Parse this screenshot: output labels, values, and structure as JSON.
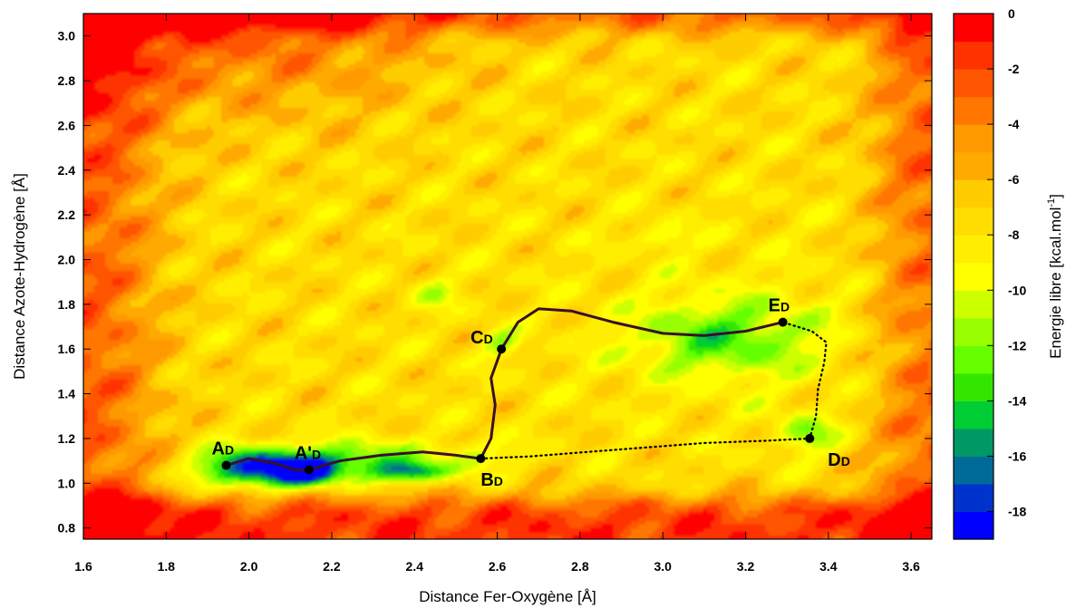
{
  "chart_data": {
    "type": "heatmap",
    "xlabel": "Distance Fer-Oxygène [Å]",
    "ylabel": "Distance Azote-Hydrogène [Å]",
    "xlim": [
      1.6,
      3.65
    ],
    "ylim": [
      0.75,
      3.1
    ],
    "xticks": [
      "1.6",
      "1.8",
      "2.0",
      "2.2",
      "2.4",
      "2.6",
      "2.8",
      "3.0",
      "3.2",
      "3.4",
      "3.6"
    ],
    "yticks": [
      "0.8",
      "1.0",
      "1.2",
      "1.4",
      "1.6",
      "1.8",
      "2.0",
      "2.2",
      "2.4",
      "2.6",
      "2.8",
      "3.0"
    ],
    "colorbar": {
      "label_main": "Energie libre [kcal.mol",
      "label_sup": "-1",
      "label_end": "]",
      "range": [
        -19,
        0
      ],
      "ticks": [
        "0",
        "-2",
        "-4",
        "-6",
        "-8",
        "-10",
        "-12",
        "-14",
        "-16",
        "-18"
      ],
      "colors": [
        "#0000ff",
        "#0033cc",
        "#006b99",
        "#009966",
        "#00cc33",
        "#33e600",
        "#66ff00",
        "#99ff00",
        "#ccff00",
        "#ffff00",
        "#ffee00",
        "#ffdd00",
        "#ffcc00",
        "#ffaa00",
        "#ff9900",
        "#ff7700",
        "#ff5500",
        "#ff3300",
        "#ff0000"
      ]
    },
    "points": [
      {
        "main": "A",
        "sub": "D",
        "x": 1.945,
        "y": 1.08
      },
      {
        "main": "A'",
        "sub": "D",
        "x": 2.145,
        "y": 1.06
      },
      {
        "main": "B",
        "sub": "D",
        "x": 2.56,
        "y": 1.11
      },
      {
        "main": "C",
        "sub": "D",
        "x": 2.61,
        "y": 1.6
      },
      {
        "main": "D",
        "sub": "D",
        "x": 3.355,
        "y": 1.2
      },
      {
        "main": "E",
        "sub": "D",
        "x": 3.29,
        "y": 1.72
      }
    ],
    "paths": {
      "solid": [
        [
          1.945,
          1.08
        ],
        [
          2.0,
          1.11
        ],
        [
          2.06,
          1.09
        ],
        [
          2.11,
          1.06
        ],
        [
          2.145,
          1.06
        ],
        [
          2.22,
          1.1
        ],
        [
          2.32,
          1.125
        ],
        [
          2.42,
          1.14
        ],
        [
          2.5,
          1.125
        ],
        [
          2.56,
          1.11
        ],
        [
          2.585,
          1.2
        ],
        [
          2.595,
          1.35
        ],
        [
          2.585,
          1.47
        ],
        [
          2.61,
          1.6
        ],
        [
          2.65,
          1.72
        ],
        [
          2.7,
          1.78
        ],
        [
          2.78,
          1.77
        ],
        [
          2.88,
          1.72
        ],
        [
          3.0,
          1.67
        ],
        [
          3.1,
          1.66
        ],
        [
          3.2,
          1.68
        ],
        [
          3.29,
          1.72
        ]
      ],
      "dotted": [
        [
          2.56,
          1.11
        ],
        [
          2.68,
          1.12
        ],
        [
          2.82,
          1.14
        ],
        [
          2.96,
          1.16
        ],
        [
          3.1,
          1.18
        ],
        [
          3.25,
          1.19
        ],
        [
          3.355,
          1.2
        ],
        [
          3.37,
          1.3
        ],
        [
          3.375,
          1.42
        ],
        [
          3.39,
          1.54
        ],
        [
          3.395,
          1.63
        ],
        [
          3.36,
          1.68
        ],
        [
          3.29,
          1.72
        ]
      ]
    },
    "minima": [
      {
        "x": 2.02,
        "y": 1.07,
        "depth": -18.5,
        "sx": 0.1,
        "sy": 0.06
      },
      {
        "x": 2.14,
        "y": 1.05,
        "depth": -16,
        "sx": 0.05,
        "sy": 0.04
      },
      {
        "x": 2.4,
        "y": 1.05,
        "depth": -14.5,
        "sx": 0.06,
        "sy": 0.03
      },
      {
        "x": 2.27,
        "y": 1.1,
        "depth": -13.5,
        "sx": 0.1,
        "sy": 0.06
      },
      {
        "x": 2.55,
        "y": 1.12,
        "depth": -10.5,
        "sx": 0.06,
        "sy": 0.05
      },
      {
        "x": 3.15,
        "y": 1.65,
        "depth": -12.5,
        "sx": 0.15,
        "sy": 0.12
      },
      {
        "x": 3.35,
        "y": 1.22,
        "depth": -11.5,
        "sx": 0.05,
        "sy": 0.06
      },
      {
        "x": 2.61,
        "y": 1.62,
        "depth": -11,
        "sx": 0.03,
        "sy": 0.04
      },
      {
        "x": 3.0,
        "y": 2.1,
        "depth": -10,
        "sx": 0.05,
        "sy": 0.04
      },
      {
        "x": 2.45,
        "y": 1.85,
        "depth": -10,
        "sx": 0.04,
        "sy": 0.05
      }
    ]
  }
}
